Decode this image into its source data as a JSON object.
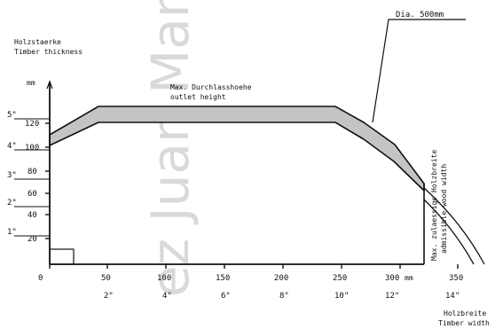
{
  "watermark": "ez Juan Man",
  "y_axis": {
    "title_de": "Holzstaerke",
    "title_en": "Timber thickness",
    "unit": "mm",
    "mm_ticks": [
      "20",
      "40",
      "60",
      "80",
      "100",
      "120"
    ],
    "inch_ticks": [
      "1\"",
      "2\"",
      "3\"",
      "4\"",
      "5\""
    ]
  },
  "x_axis": {
    "title_de": "Holzbreite",
    "title_en": "Timber width",
    "unit": "mm",
    "mm_ticks": [
      "0",
      "50",
      "100",
      "150",
      "200",
      "250",
      "300",
      "350"
    ],
    "inch_ticks": [
      "2\"",
      "4\"",
      "6\"",
      "8\"",
      "10\"",
      "12\"",
      "14\""
    ]
  },
  "annotations": {
    "max_outlet_de": "Max. Durchlasshoehe",
    "max_outlet_en": "outlet height",
    "diameter": "Dia. 500mm",
    "max_width_de": "Max. zulaessige Holzbreite",
    "max_width_en": "admissible wood width"
  }
}
